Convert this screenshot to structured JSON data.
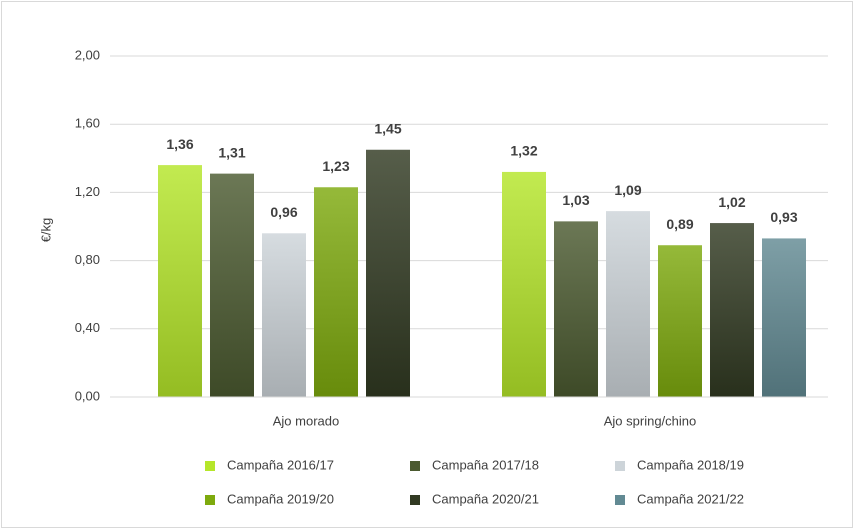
{
  "chart_data": {
    "type": "bar",
    "y_label": "€/kg",
    "categories": [
      "Ajo morado",
      "Ajo spring/chino"
    ],
    "series": [
      {
        "name": "Campaña 2016/17",
        "color": "#b5e62a",
        "values": [
          1.36,
          1.32
        ],
        "value_labels": [
          "1,36",
          "1,32"
        ]
      },
      {
        "name": "Campaña 2017/18",
        "color": "#4b5a30",
        "values": [
          1.31,
          1.03
        ],
        "value_labels": [
          "1,31",
          "1,03"
        ]
      },
      {
        "name": "Campaña 2018/19",
        "color": "#cdd4d9",
        "values": [
          0.96,
          1.09
        ],
        "value_labels": [
          "0,96",
          "1,09"
        ]
      },
      {
        "name": "Campaña 2019/20",
        "color": "#7eaa0e",
        "values": [
          1.23,
          0.89
        ],
        "value_labels": [
          "1,23",
          "0,89"
        ]
      },
      {
        "name": "Campaña 2020/21",
        "color": "#313a22",
        "values": [
          1.45,
          1.02
        ],
        "value_labels": [
          "1,45",
          "1,02"
        ]
      },
      {
        "name": "Campaña 2021/22",
        "color": "#628a93",
        "values": [
          null,
          0.93
        ],
        "value_labels": [
          null,
          "0,93"
        ]
      }
    ],
    "ylim": [
      0,
      2
    ],
    "yticks": [
      {
        "value": 0,
        "label": "0,00"
      },
      {
        "value": 0.4,
        "label": "0,40"
      },
      {
        "value": 0.8,
        "label": "0,80"
      },
      {
        "value": 1.2,
        "label": "1,20"
      },
      {
        "value": 1.6,
        "label": "1,60"
      },
      {
        "value": 2,
        "label": "2,00"
      }
    ],
    "grid": true
  }
}
